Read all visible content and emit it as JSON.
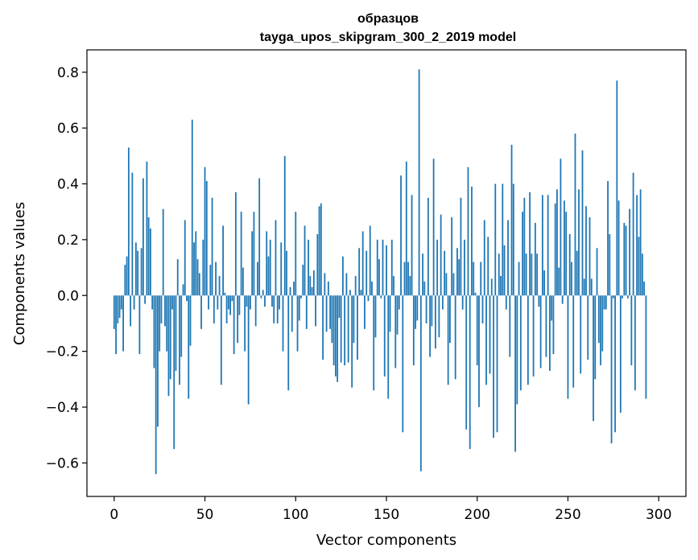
{
  "chart_data": {
    "type": "bar",
    "title_line1": "образцов",
    "title_line2": "tayga_upos_skipgram_300_2_2019 model",
    "xlabel": "Vector components",
    "ylabel": "Components values",
    "xlim": [
      -15,
      315
    ],
    "ylim": [
      -0.72,
      0.88
    ],
    "xticks": [
      0,
      50,
      100,
      150,
      200,
      250,
      300
    ],
    "xtick_labels": [
      "0",
      "50",
      "100",
      "150",
      "200",
      "250",
      "300"
    ],
    "yticks": [
      -0.6,
      -0.4,
      -0.2,
      0.0,
      0.2,
      0.4,
      0.6,
      0.8
    ],
    "ytick_labels": [
      "−0.6",
      "−0.4",
      "−0.2",
      "0.0",
      "0.2",
      "0.4",
      "0.6",
      "0.8"
    ],
    "bar_color": "#1f77b4",
    "series": [
      {
        "name": "components",
        "values": [
          -0.12,
          -0.21,
          -0.1,
          -0.08,
          -0.05,
          -0.2,
          0.11,
          0.14,
          0.53,
          -0.11,
          0.44,
          -0.05,
          0.19,
          0.16,
          -0.21,
          0.17,
          0.42,
          -0.03,
          0.48,
          0.28,
          0.24,
          -0.05,
          -0.26,
          -0.64,
          -0.47,
          -0.2,
          -0.1,
          0.31,
          -0.11,
          -0.2,
          -0.36,
          -0.3,
          -0.05,
          -0.55,
          -0.27,
          0.13,
          -0.32,
          -0.22,
          0.04,
          0.27,
          -0.02,
          -0.37,
          -0.18,
          0.63,
          0.19,
          0.23,
          0.13,
          0.08,
          -0.12,
          0.2,
          0.46,
          0.41,
          -0.05,
          0.11,
          0.35,
          -0.1,
          0.12,
          -0.05,
          0.07,
          -0.32,
          0.25,
          0.01,
          -0.1,
          -0.05,
          -0.07,
          -0.02,
          -0.21,
          0.37,
          -0.17,
          -0.07,
          0.3,
          0.1,
          -0.2,
          -0.04,
          -0.39,
          -0.05,
          0.23,
          0.3,
          -0.11,
          0.12,
          0.42,
          -0.01,
          0.02,
          -0.04,
          0.23,
          0.14,
          0.2,
          -0.04,
          -0.1,
          0.27,
          -0.1,
          -0.05,
          0.19,
          -0.2,
          0.5,
          0.16,
          -0.34,
          0.03,
          -0.13,
          0.05,
          0.3,
          -0.2,
          -0.09,
          -0.01,
          0.11,
          0.25,
          -0.12,
          0.2,
          0.07,
          0.03,
          0.09,
          -0.11,
          0.22,
          0.32,
          0.33,
          -0.23,
          0.08,
          -0.13,
          0.05,
          -0.12,
          -0.17,
          -0.25,
          -0.29,
          -0.31,
          -0.08,
          -0.24,
          0.14,
          -0.25,
          0.08,
          -0.24,
          0.02,
          -0.33,
          -0.17,
          0.07,
          -0.23,
          0.17,
          0.02,
          0.23,
          -0.12,
          0.16,
          -0.02,
          0.25,
          0.05,
          -0.34,
          -0.15,
          0.2,
          0.13,
          -0.01,
          0.2,
          -0.29,
          0.18,
          -0.37,
          -0.13,
          0.2,
          0.07,
          -0.26,
          -0.14,
          -0.05,
          0.43,
          -0.49,
          0.12,
          0.48,
          0.12,
          0.07,
          0.36,
          -0.25,
          -0.12,
          -0.09,
          0.81,
          -0.63,
          0.15,
          0.05,
          -0.1,
          0.35,
          -0.22,
          -0.11,
          0.49,
          -0.19,
          0.2,
          -0.15,
          0.29,
          -0.05,
          0.16,
          0.08,
          -0.32,
          -0.17,
          0.28,
          0.08,
          -0.3,
          0.17,
          0.13,
          0.35,
          -0.05,
          0.2,
          -0.48,
          0.46,
          -0.55,
          0.39,
          0.12,
          0.01,
          -0.25,
          -0.4,
          0.12,
          -0.1,
          0.27,
          -0.32,
          0.21,
          -0.28,
          0.06,
          -0.51,
          0.4,
          -0.49,
          0.15,
          0.07,
          0.4,
          0.18,
          -0.05,
          0.27,
          -0.22,
          0.54,
          0.4,
          -0.56,
          -0.39,
          0.12,
          -0.34,
          0.3,
          0.35,
          0.15,
          -0.32,
          0.37,
          0.15,
          -0.29,
          0.26,
          0.15,
          -0.04,
          -0.26,
          0.36,
          0.09,
          -0.22,
          0.36,
          -0.27,
          -0.09,
          -0.21,
          0.33,
          0.38,
          0.1,
          0.49,
          -0.03,
          0.34,
          0.3,
          -0.37,
          0.22,
          0.12,
          -0.33,
          0.58,
          0.16,
          0.38,
          -0.28,
          0.52,
          0.06,
          0.32,
          -0.23,
          0.28,
          0.06,
          -0.45,
          -0.3,
          0.17,
          -0.17,
          -0.25,
          -0.2,
          -0.05,
          -0.05,
          0.41,
          0.22,
          -0.53,
          -0.01,
          -0.49,
          0.77,
          0.34,
          -0.42,
          -0.01,
          0.26,
          0.25,
          -0.01,
          0.31,
          -0.25,
          0.44,
          -0.34,
          0.36,
          0.21,
          0.38,
          0.15,
          0.05,
          -0.37
        ]
      }
    ]
  }
}
